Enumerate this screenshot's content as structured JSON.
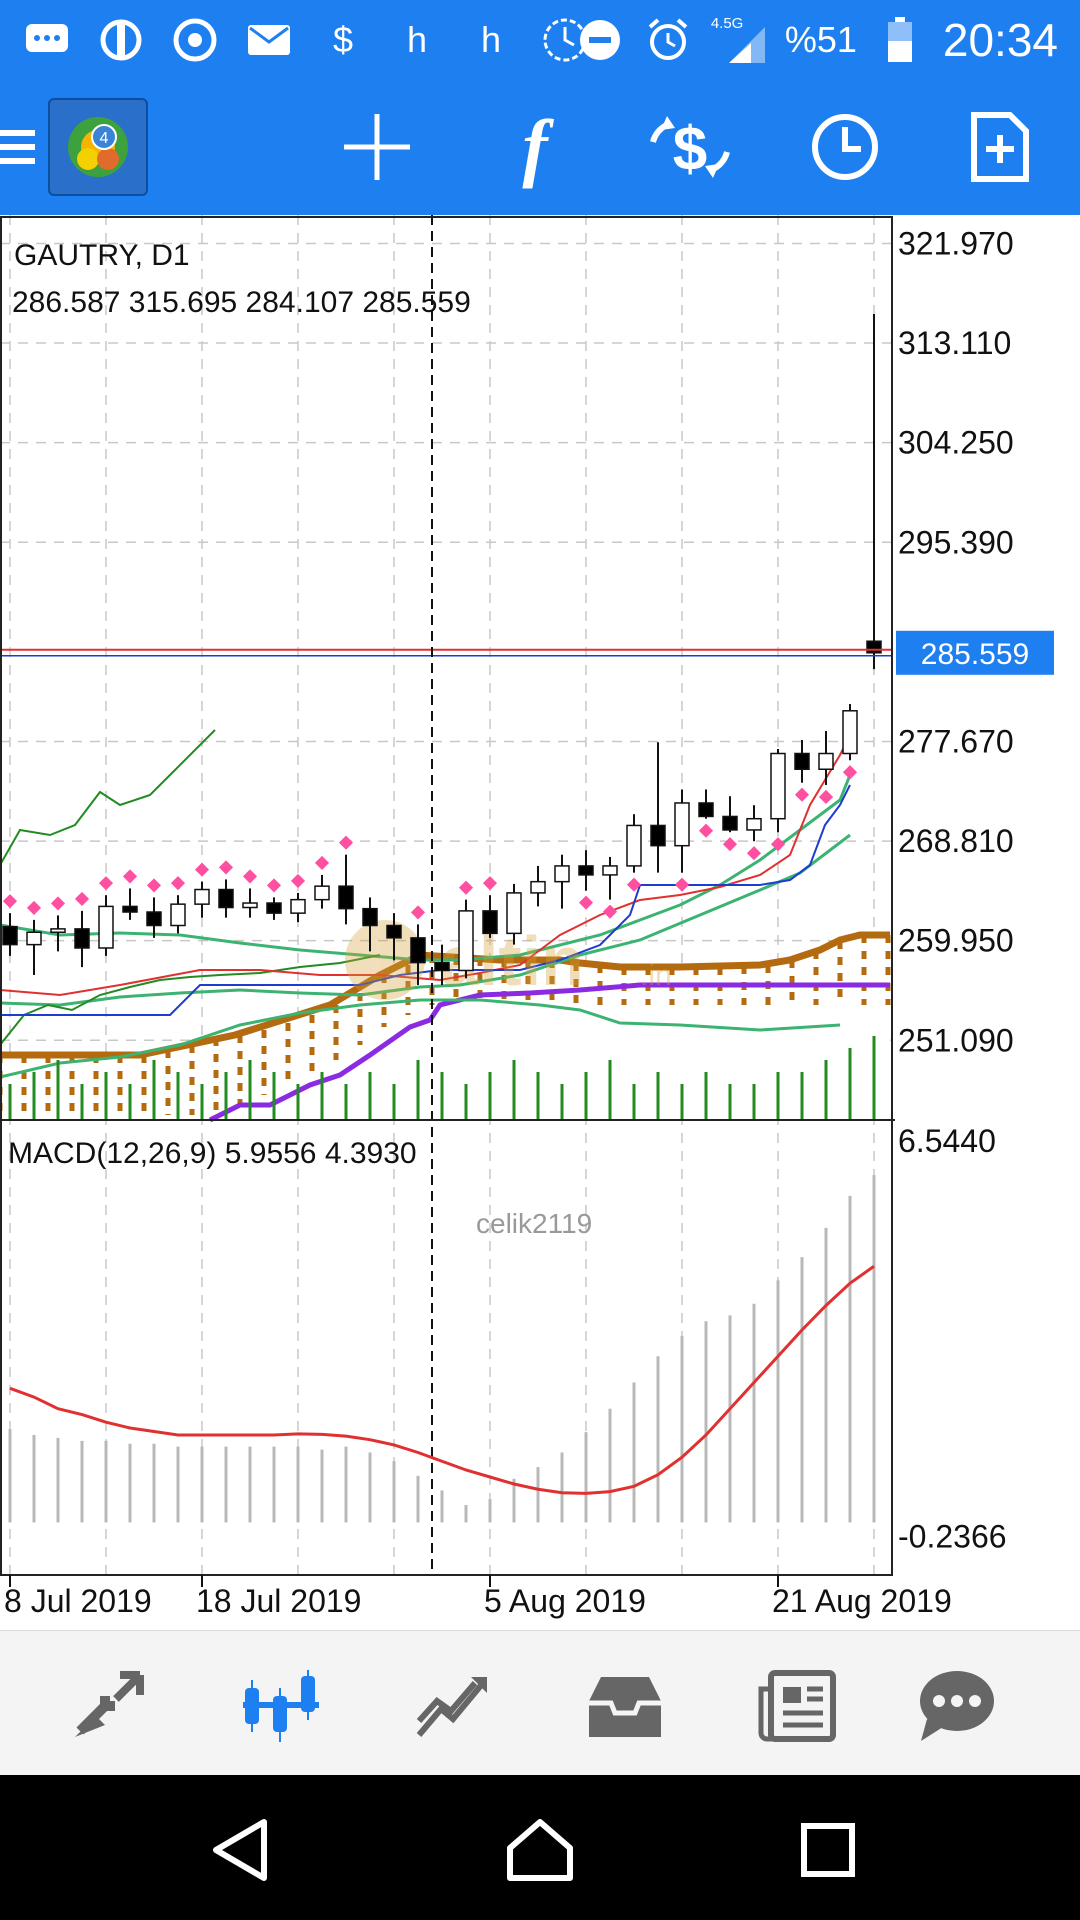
{
  "status_bar": {
    "icons": [
      "chat-icon",
      "app-icon",
      "chrome-icon",
      "mail-icon",
      "dollar-icon",
      "h-icon",
      "h-icon",
      "clock-icon"
    ],
    "h1": "h",
    "h2": "h",
    "dollar": "$",
    "network": "4.5G",
    "battery": "%51",
    "time": "20:34"
  },
  "toolbar": {
    "icons": [
      "menu-icon",
      "metatrader-logo",
      "crosshair-icon",
      "indicators-icon",
      "trade-icon",
      "clock-icon",
      "new-order-icon"
    ],
    "f_glyph": "f"
  },
  "bottom_nav": {
    "icons": [
      "quotes-icon",
      "chart-icon",
      "trade-icon",
      "history-icon",
      "news-icon",
      "chat-icon"
    ]
  },
  "system_nav": {
    "icons": [
      "back-icon",
      "home-icon",
      "recents-icon"
    ]
  },
  "chart_data": [
    {
      "type": "candlestick",
      "symbol_label": "GAUTRY, D1",
      "ohlc_label": "286.587 315.695 284.107 285.559",
      "price_ticks": [
        "321.970",
        "313.110",
        "304.250",
        "295.390",
        "277.670",
        "268.810",
        "259.950",
        "251.090"
      ],
      "tick_values": [
        321.97,
        313.11,
        304.25,
        295.39,
        277.67,
        268.81,
        259.95,
        251.09
      ],
      "ylim": [
        244.0,
        324.5
      ],
      "current_price_label": "285.559",
      "current_price": 285.559,
      "watermark": "celik2119",
      "watermark_logo": "altin.in",
      "colors": {
        "bg": "#ffffff",
        "bull": "#ffffff",
        "bear": "#000000",
        "grid": "#c8c8c8",
        "price_line": "#e03030",
        "price_box": "#1e7ff0"
      },
      "candles": [
        [
          261.2,
          262.4,
          258.6,
          259.6
        ],
        [
          259.6,
          261.8,
          256.9,
          260.7
        ],
        [
          260.7,
          262.2,
          259.0,
          261.0
        ],
        [
          261.0,
          262.6,
          257.6,
          259.3
        ],
        [
          259.3,
          264.0,
          258.6,
          263.0
        ],
        [
          263.0,
          264.6,
          261.8,
          262.5
        ],
        [
          262.5,
          263.8,
          260.2,
          261.3
        ],
        [
          261.3,
          264.0,
          260.6,
          263.2
        ],
        [
          263.2,
          265.2,
          262.0,
          264.5
        ],
        [
          264.5,
          265.4,
          262.0,
          262.9
        ],
        [
          262.9,
          264.6,
          262.0,
          263.3
        ],
        [
          263.3,
          263.8,
          261.8,
          262.4
        ],
        [
          262.4,
          264.2,
          261.6,
          263.6
        ],
        [
          263.6,
          265.8,
          262.8,
          264.8
        ],
        [
          264.8,
          267.6,
          261.4,
          262.8
        ],
        [
          262.8,
          263.8,
          259.0,
          261.3
        ],
        [
          261.3,
          262.4,
          258.2,
          260.2
        ],
        [
          260.2,
          261.4,
          256.0,
          258.0
        ],
        [
          258.0,
          259.6,
          256.0,
          257.3
        ],
        [
          257.3,
          263.6,
          256.6,
          262.6
        ],
        [
          262.6,
          264.0,
          260.2,
          260.6
        ],
        [
          260.6,
          265.0,
          259.6,
          264.2
        ],
        [
          264.2,
          266.6,
          263.0,
          265.2
        ],
        [
          265.2,
          267.6,
          262.8,
          266.6
        ],
        [
          266.6,
          268.0,
          264.4,
          265.8
        ],
        [
          265.8,
          267.4,
          263.6,
          266.6
        ],
        [
          266.6,
          271.2,
          266.0,
          270.2
        ],
        [
          270.2,
          277.6,
          266.0,
          268.4
        ],
        [
          268.4,
          273.4,
          266.0,
          272.2
        ],
        [
          272.2,
          273.4,
          270.8,
          271.0
        ],
        [
          271.0,
          272.8,
          269.6,
          269.8
        ],
        [
          269.8,
          272.0,
          268.8,
          270.8
        ],
        [
          270.8,
          277.0,
          269.6,
          276.6
        ],
        [
          276.6,
          277.8,
          274.0,
          275.2
        ],
        [
          275.2,
          278.6,
          273.8,
          276.6
        ],
        [
          276.6,
          281.0,
          276.0,
          280.4
        ],
        [
          286.587,
          315.695,
          284.107,
          285.559
        ]
      ],
      "volume": [
        3,
        4,
        5,
        3,
        4,
        3,
        5,
        4,
        3,
        4,
        5,
        4,
        3,
        4,
        3,
        4,
        3,
        5,
        4,
        3,
        4,
        5,
        4,
        3,
        4,
        5,
        3,
        4,
        3,
        4,
        3,
        3,
        4,
        4,
        5,
        6,
        7
      ]
    },
    {
      "type": "bar+line",
      "title": "MACD(12,26,9) 5.9556 4.3930",
      "ticks": [
        "6.5440",
        "-0.2366"
      ],
      "ylim": [
        -0.9,
        6.9
      ],
      "x_labels": [
        "8 Jul 2019",
        "18 Jul 2019",
        "5 Aug 2019",
        "21 Aug 2019"
      ],
      "x_label_index": [
        0,
        8,
        20,
        32
      ],
      "histogram": [
        1.6,
        1.5,
        1.45,
        1.4,
        1.4,
        1.35,
        1.35,
        1.3,
        1.3,
        1.3,
        1.3,
        1.3,
        1.3,
        1.25,
        1.3,
        1.2,
        1.05,
        0.8,
        0.55,
        0.3,
        0.4,
        0.75,
        0.95,
        1.2,
        1.55,
        1.95,
        2.4,
        2.85,
        3.2,
        3.45,
        3.55,
        3.75,
        4.15,
        4.55,
        5.05,
        5.6,
        5.9556
      ],
      "signal": [
        2.3,
        2.15,
        1.95,
        1.85,
        1.72,
        1.62,
        1.56,
        1.5,
        1.5,
        1.5,
        1.5,
        1.5,
        1.52,
        1.51,
        1.48,
        1.42,
        1.33,
        1.2,
        1.05,
        0.9,
        0.78,
        0.66,
        0.57,
        0.51,
        0.5,
        0.53,
        0.62,
        0.82,
        1.12,
        1.5,
        1.95,
        2.4,
        2.85,
        3.3,
        3.72,
        4.1,
        4.393
      ],
      "colors": {
        "histogram": "#b8b8b8",
        "signal": "#e03030"
      }
    }
  ]
}
